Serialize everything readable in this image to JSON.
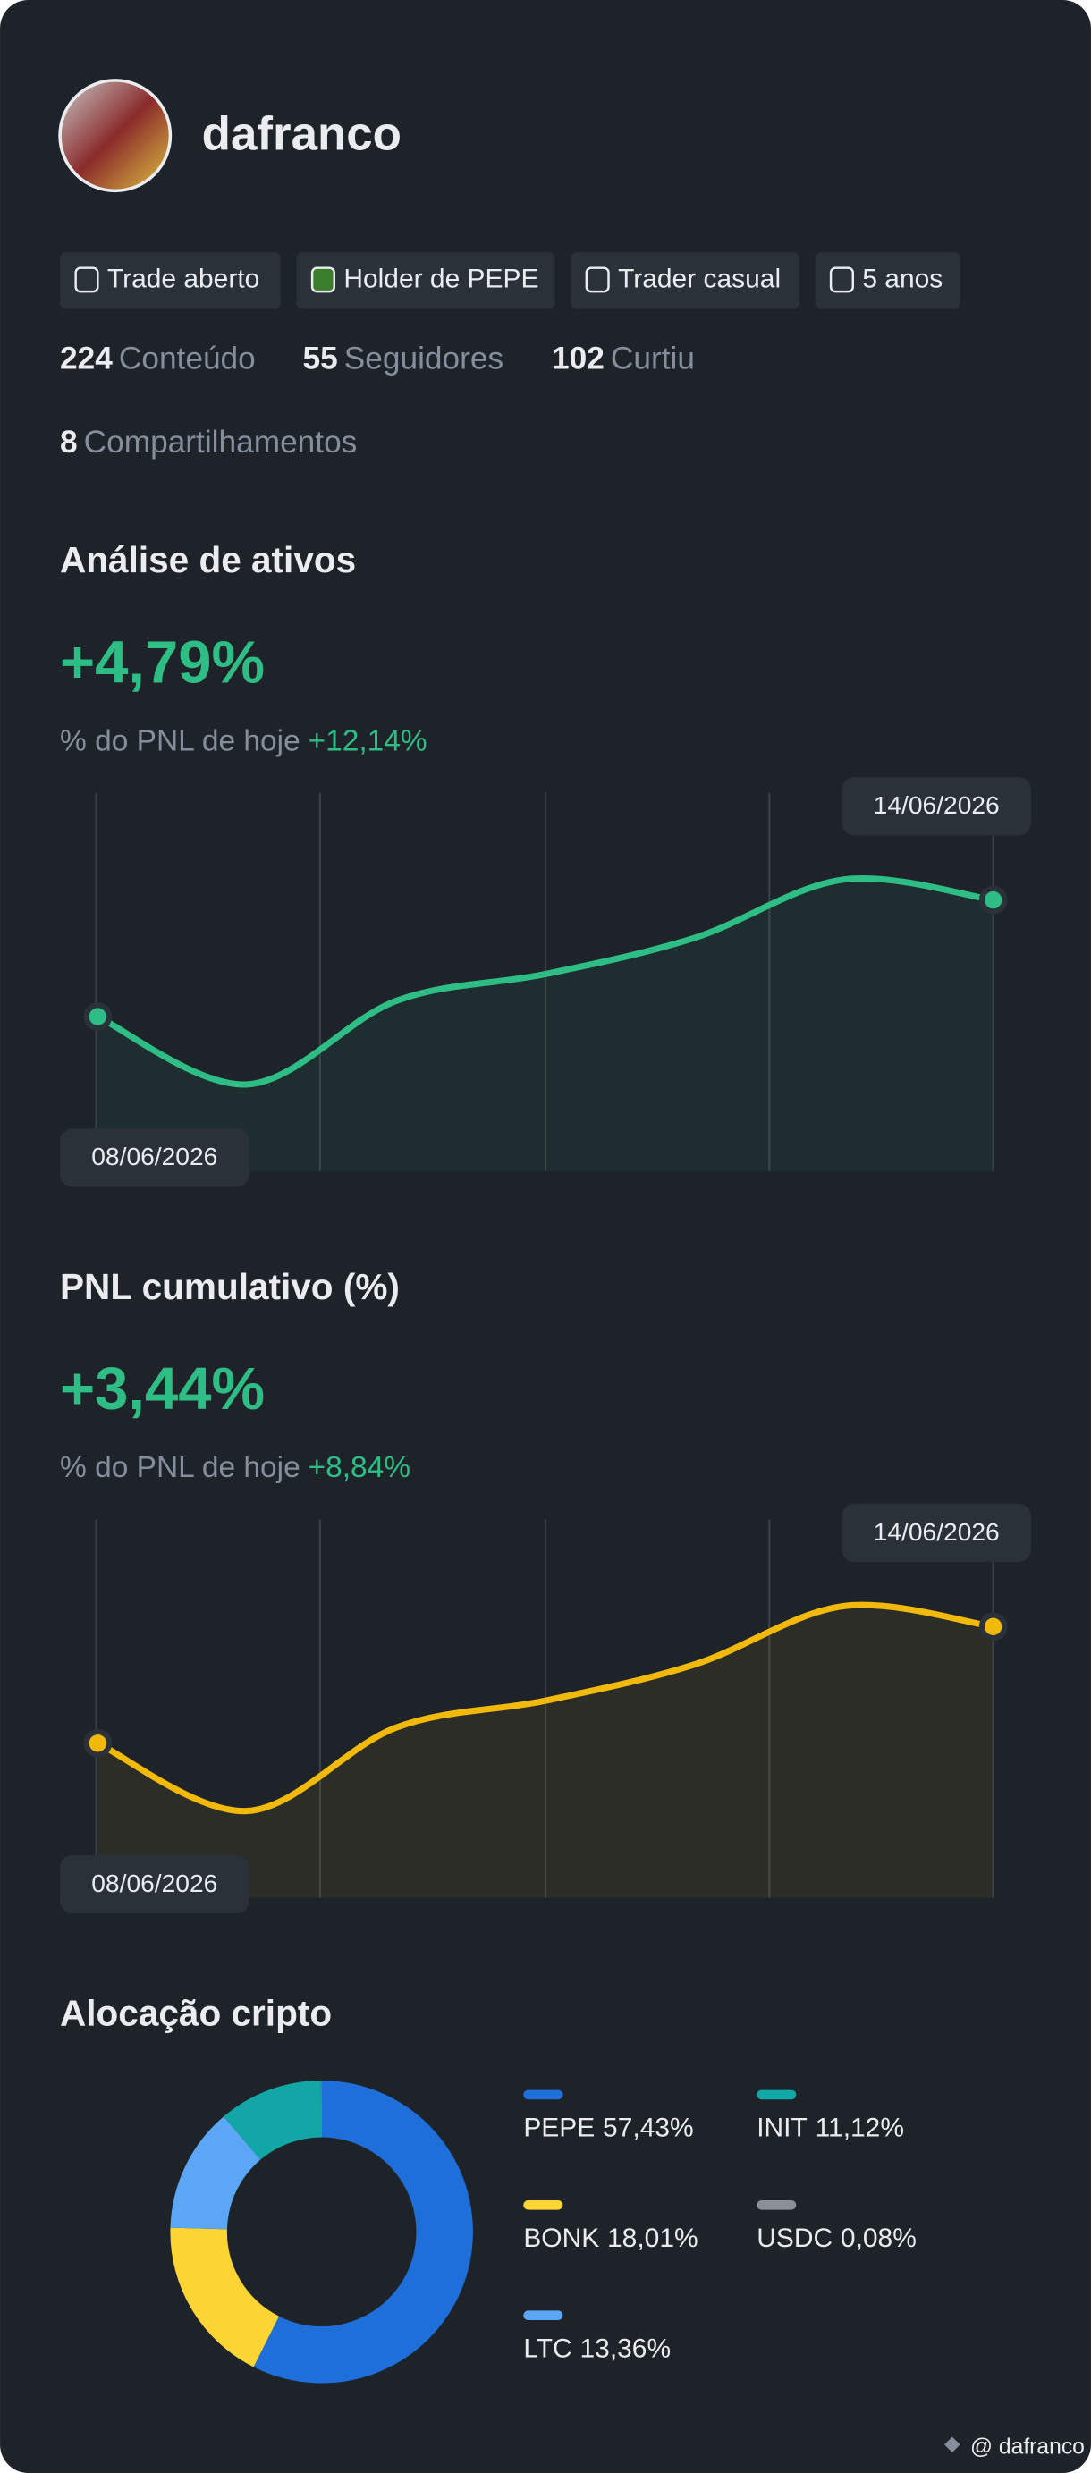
{
  "profile": {
    "name": "dafranco",
    "badges": [
      "Trade aberto",
      "Holder de PEPE",
      "Trader casual",
      "5 anos"
    ],
    "stats": [
      {
        "value": 224,
        "label": "Conteúdo"
      },
      {
        "value": 55,
        "label": "Seguidores"
      },
      {
        "value": 102,
        "label": "Curtiu"
      },
      {
        "value": 8,
        "label": "Compartilhamentos"
      }
    ]
  },
  "chart_data": [
    {
      "type": "line",
      "title": "Análise de ativos",
      "headline": "+4,79%",
      "subtitle": "% do PNL de hoje",
      "subtitle_value": "+12,14%",
      "x": [
        "08/06/2026",
        null,
        null,
        null,
        null,
        null,
        "14/06/2026"
      ],
      "series": [
        {
          "color": "#2ebd85",
          "values": [
            98,
            55,
            108,
            125,
            148,
            185,
            172
          ]
        }
      ]
    },
    {
      "type": "line",
      "title": "PNL cumulativo (%)",
      "headline": "+3,44%",
      "subtitle": "% do PNL de hoje",
      "subtitle_value": "+8,84%",
      "x": [
        "08/06/2026",
        null,
        null,
        null,
        null,
        null,
        "14/06/2026"
      ],
      "series": [
        {
          "color": "#f0b90b",
          "values": [
            98,
            55,
            108,
            125,
            148,
            185,
            172
          ]
        }
      ]
    },
    {
      "type": "pie",
      "title": "Alocação cripto",
      "categories": [
        "PEPE",
        "BONK",
        "LTC",
        "INIT",
        "USDC"
      ],
      "values": [
        57.43,
        18.01,
        13.36,
        11.12,
        0.08
      ],
      "value_labels": [
        "57,43%",
        "18,01%",
        "13,36%",
        "11,12%",
        "0,08%"
      ],
      "colors": [
        "#1e6fd9",
        "#fcd535",
        "#5ba7f5",
        "#12a6a6",
        "#8a8f98"
      ]
    }
  ],
  "watermark": "@ dafranco"
}
